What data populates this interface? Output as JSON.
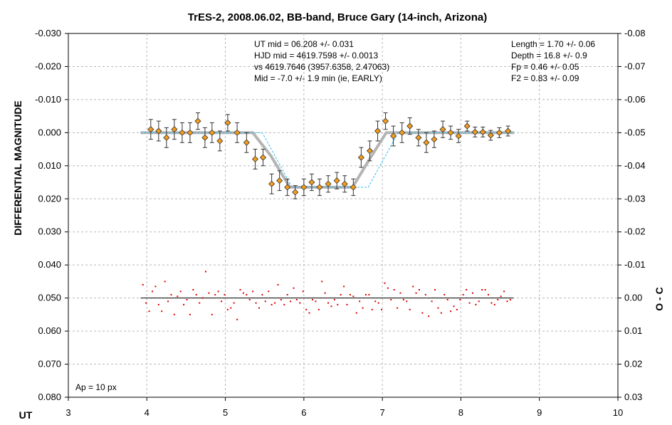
{
  "chart_data": {
    "type": "scatter",
    "title": "TrES-2, 2008.06.02, BB-band, Bruce Gary (14-inch, Arizona)",
    "xlabel": "UT",
    "ylabel": "DIFFERENTIAL MAGNITUDE",
    "y2label": "O - C",
    "xlim": [
      3,
      10
    ],
    "ylim": [
      -0.03,
      0.08
    ],
    "y_inverted": true,
    "y2lim": [
      -0.08,
      0.03
    ],
    "x_ticks": [
      "3",
      "4",
      "5",
      "6",
      "7",
      "8",
      "9",
      "10"
    ],
    "x_tick_values": [
      3,
      4,
      5,
      6,
      7,
      8,
      9,
      10
    ],
    "y_ticks": [
      "-0.030",
      "-0.020",
      "-0.010",
      "0.000",
      "0.010",
      "0.020",
      "0.030",
      "0.040",
      "0.050",
      "0.060",
      "0.070",
      "0.080"
    ],
    "y_tick_values": [
      -0.03,
      -0.02,
      -0.01,
      0.0,
      0.01,
      0.02,
      0.03,
      0.04,
      0.05,
      0.06,
      0.07,
      0.08
    ],
    "y2_ticks": [
      "-0.08",
      "-0.07",
      "-0.06",
      "-0.05",
      "-0.04",
      "-0.03",
      "-0.02",
      "-0.01",
      "0.00",
      "0.01",
      "0.02",
      "0.03"
    ],
    "grid": true,
    "annotations": {
      "left_block": [
        "UT mid = 06.208 +/- 0.031",
        "HJD mid = 4619.7598 +/- 0.0013",
        "vs 4619.7646  (3957.6358, 2.47063)",
        "Mid = -7.0 +/- 1.9 min (ie, EARLY)"
      ],
      "right_block": [
        "Length = 1.70 +/- 0.06",
        "Depth = 16.8 +/- 0.9",
        "Fp = 0.46 +/- 0.05",
        "F2 = 0.83 +/- 0.09"
      ],
      "aperture": "Ap = 10 px"
    },
    "model_fit": {
      "x": [
        3.92,
        5.35,
        5.58,
        5.82,
        6.62,
        6.85,
        7.05,
        8.68
      ],
      "y": [
        0.0,
        0.0,
        0.007,
        0.0165,
        0.0165,
        0.0075,
        0.0,
        0.0
      ]
    },
    "predicted": {
      "x": [
        3.92,
        5.47,
        5.85,
        6.82,
        7.2,
        8.68
      ],
      "y": [
        0.0,
        0.0,
        0.0165,
        0.0165,
        0.0,
        0.0
      ]
    },
    "residual_baseline": 0.05,
    "series": [
      {
        "x": [
          4.05,
          4.15,
          4.25,
          4.35,
          4.45,
          4.55,
          4.65,
          4.74,
          4.83,
          4.93,
          5.03,
          5.15,
          5.27,
          5.38,
          5.48,
          5.59,
          5.69,
          5.79,
          5.89,
          6.0,
          6.1,
          6.2,
          6.31,
          6.42,
          6.52,
          6.63,
          6.73,
          6.84,
          6.94,
          7.04,
          7.14,
          7.25,
          7.35,
          7.46,
          7.56,
          7.66,
          7.77,
          7.87,
          7.97,
          8.08,
          8.18,
          8.28,
          8.38,
          8.49,
          8.6
        ],
        "y": [
          -0.001,
          -0.0005,
          0.0015,
          -0.001,
          0.0,
          0.0,
          -0.0035,
          0.0015,
          0.0,
          0.0025,
          -0.003,
          0.0,
          0.003,
          0.008,
          0.0075,
          0.0155,
          0.0145,
          0.0165,
          0.018,
          0.0165,
          0.015,
          0.0165,
          0.0155,
          0.0145,
          0.0155,
          0.0165,
          0.0075,
          0.0055,
          -0.0005,
          -0.0035,
          0.001,
          0.0,
          -0.002,
          0.0015,
          0.003,
          0.002,
          -0.001,
          0.0,
          0.001,
          -0.002,
          -0.0002,
          -0.0002,
          0.0008,
          0.0,
          -0.0005
        ],
        "errors": [
          0.003,
          0.003,
          0.003,
          0.003,
          0.003,
          0.003,
          0.0025,
          0.003,
          0.003,
          0.003,
          0.0025,
          0.003,
          0.003,
          0.003,
          0.0025,
          0.003,
          0.003,
          0.0025,
          0.002,
          0.0025,
          0.0025,
          0.0025,
          0.0025,
          0.0025,
          0.0025,
          0.0025,
          0.003,
          0.003,
          0.003,
          0.0025,
          0.003,
          0.003,
          0.0025,
          0.0025,
          0.003,
          0.0025,
          0.0025,
          0.002,
          0.002,
          0.0015,
          0.0015,
          0.0015,
          0.0015,
          0.0015,
          0.0015
        ]
      },
      {
        "x": [
          3.95,
          3.99,
          4.03,
          4.07,
          4.11,
          4.15,
          4.19,
          4.23,
          4.27,
          4.31,
          4.35,
          4.39,
          4.43,
          4.47,
          4.51,
          4.55,
          4.59,
          4.63,
          4.67,
          4.71,
          4.75,
          4.79,
          4.83,
          4.87,
          4.91,
          4.95,
          4.99,
          5.03,
          5.07,
          5.11,
          5.15,
          5.19,
          5.23,
          5.27,
          5.31,
          5.35,
          5.39,
          5.43,
          5.47,
          5.51,
          5.55,
          5.59,
          5.63,
          5.67,
          5.71,
          5.75,
          5.79,
          5.83,
          5.87,
          5.91,
          5.95,
          5.99,
          6.03,
          6.07,
          6.11,
          6.15,
          6.19,
          6.23,
          6.27,
          6.31,
          6.35,
          6.39,
          6.43,
          6.47,
          6.51,
          6.55,
          6.59,
          6.63,
          6.67,
          6.71,
          6.75,
          6.79,
          6.83,
          6.87,
          6.91,
          6.95,
          6.99,
          7.03,
          7.07,
          7.11,
          7.15,
          7.19,
          7.23,
          7.27,
          7.31,
          7.35,
          7.39,
          7.43,
          7.47,
          7.51,
          7.55,
          7.59,
          7.63,
          7.67,
          7.71,
          7.75,
          7.79,
          7.83,
          7.87,
          7.91,
          7.95,
          7.99,
          8.03,
          8.07,
          8.11,
          8.15,
          8.19,
          8.23,
          8.27,
          8.31,
          8.35,
          8.39,
          8.43,
          8.47,
          8.51,
          8.55,
          8.59,
          8.63
        ],
        "y": [
          0.046,
          0.0515,
          0.054,
          0.048,
          0.0465,
          0.052,
          0.054,
          0.045,
          0.051,
          0.049,
          0.055,
          0.0495,
          0.048,
          0.052,
          0.0505,
          0.055,
          0.0475,
          0.049,
          0.0515,
          0.05,
          0.042,
          0.0485,
          0.055,
          0.049,
          0.048,
          0.051,
          0.049,
          0.0535,
          0.053,
          0.0515,
          0.0565,
          0.0475,
          0.0485,
          0.049,
          0.0505,
          0.048,
          0.0515,
          0.053,
          0.049,
          0.051,
          0.048,
          0.052,
          0.0515,
          0.046,
          0.0505,
          0.052,
          0.049,
          0.051,
          0.047,
          0.0505,
          0.0515,
          0.048,
          0.0535,
          0.0545,
          0.0505,
          0.051,
          0.0535,
          0.045,
          0.0485,
          0.0515,
          0.0525,
          0.0505,
          0.052,
          0.049,
          0.0465,
          0.052,
          0.049,
          0.0495,
          0.0545,
          0.051,
          0.053,
          0.049,
          0.049,
          0.0535,
          0.051,
          0.0515,
          0.0535,
          0.0455,
          0.047,
          0.0505,
          0.0475,
          0.053,
          0.0485,
          0.0505,
          0.051,
          0.0535,
          0.0465,
          0.0485,
          0.0475,
          0.0545,
          0.049,
          0.0555,
          0.051,
          0.0475,
          0.053,
          0.0545,
          0.049,
          0.0505,
          0.054,
          0.0525,
          0.0535,
          0.0505,
          0.049,
          0.0475,
          0.0515,
          0.0485,
          0.052,
          0.051,
          0.0475,
          0.0475,
          0.049,
          0.0515,
          0.052,
          0.0505,
          0.0495,
          0.048,
          0.051,
          0.0505
        ]
      }
    ],
    "colors": {
      "data_marker": "#f39b1c",
      "marker_edge": "#333333",
      "model_fit": "#b4b4b4",
      "predicted": "#33bbee",
      "residual": "#dd0000",
      "grid": "#b8b8b8"
    }
  }
}
